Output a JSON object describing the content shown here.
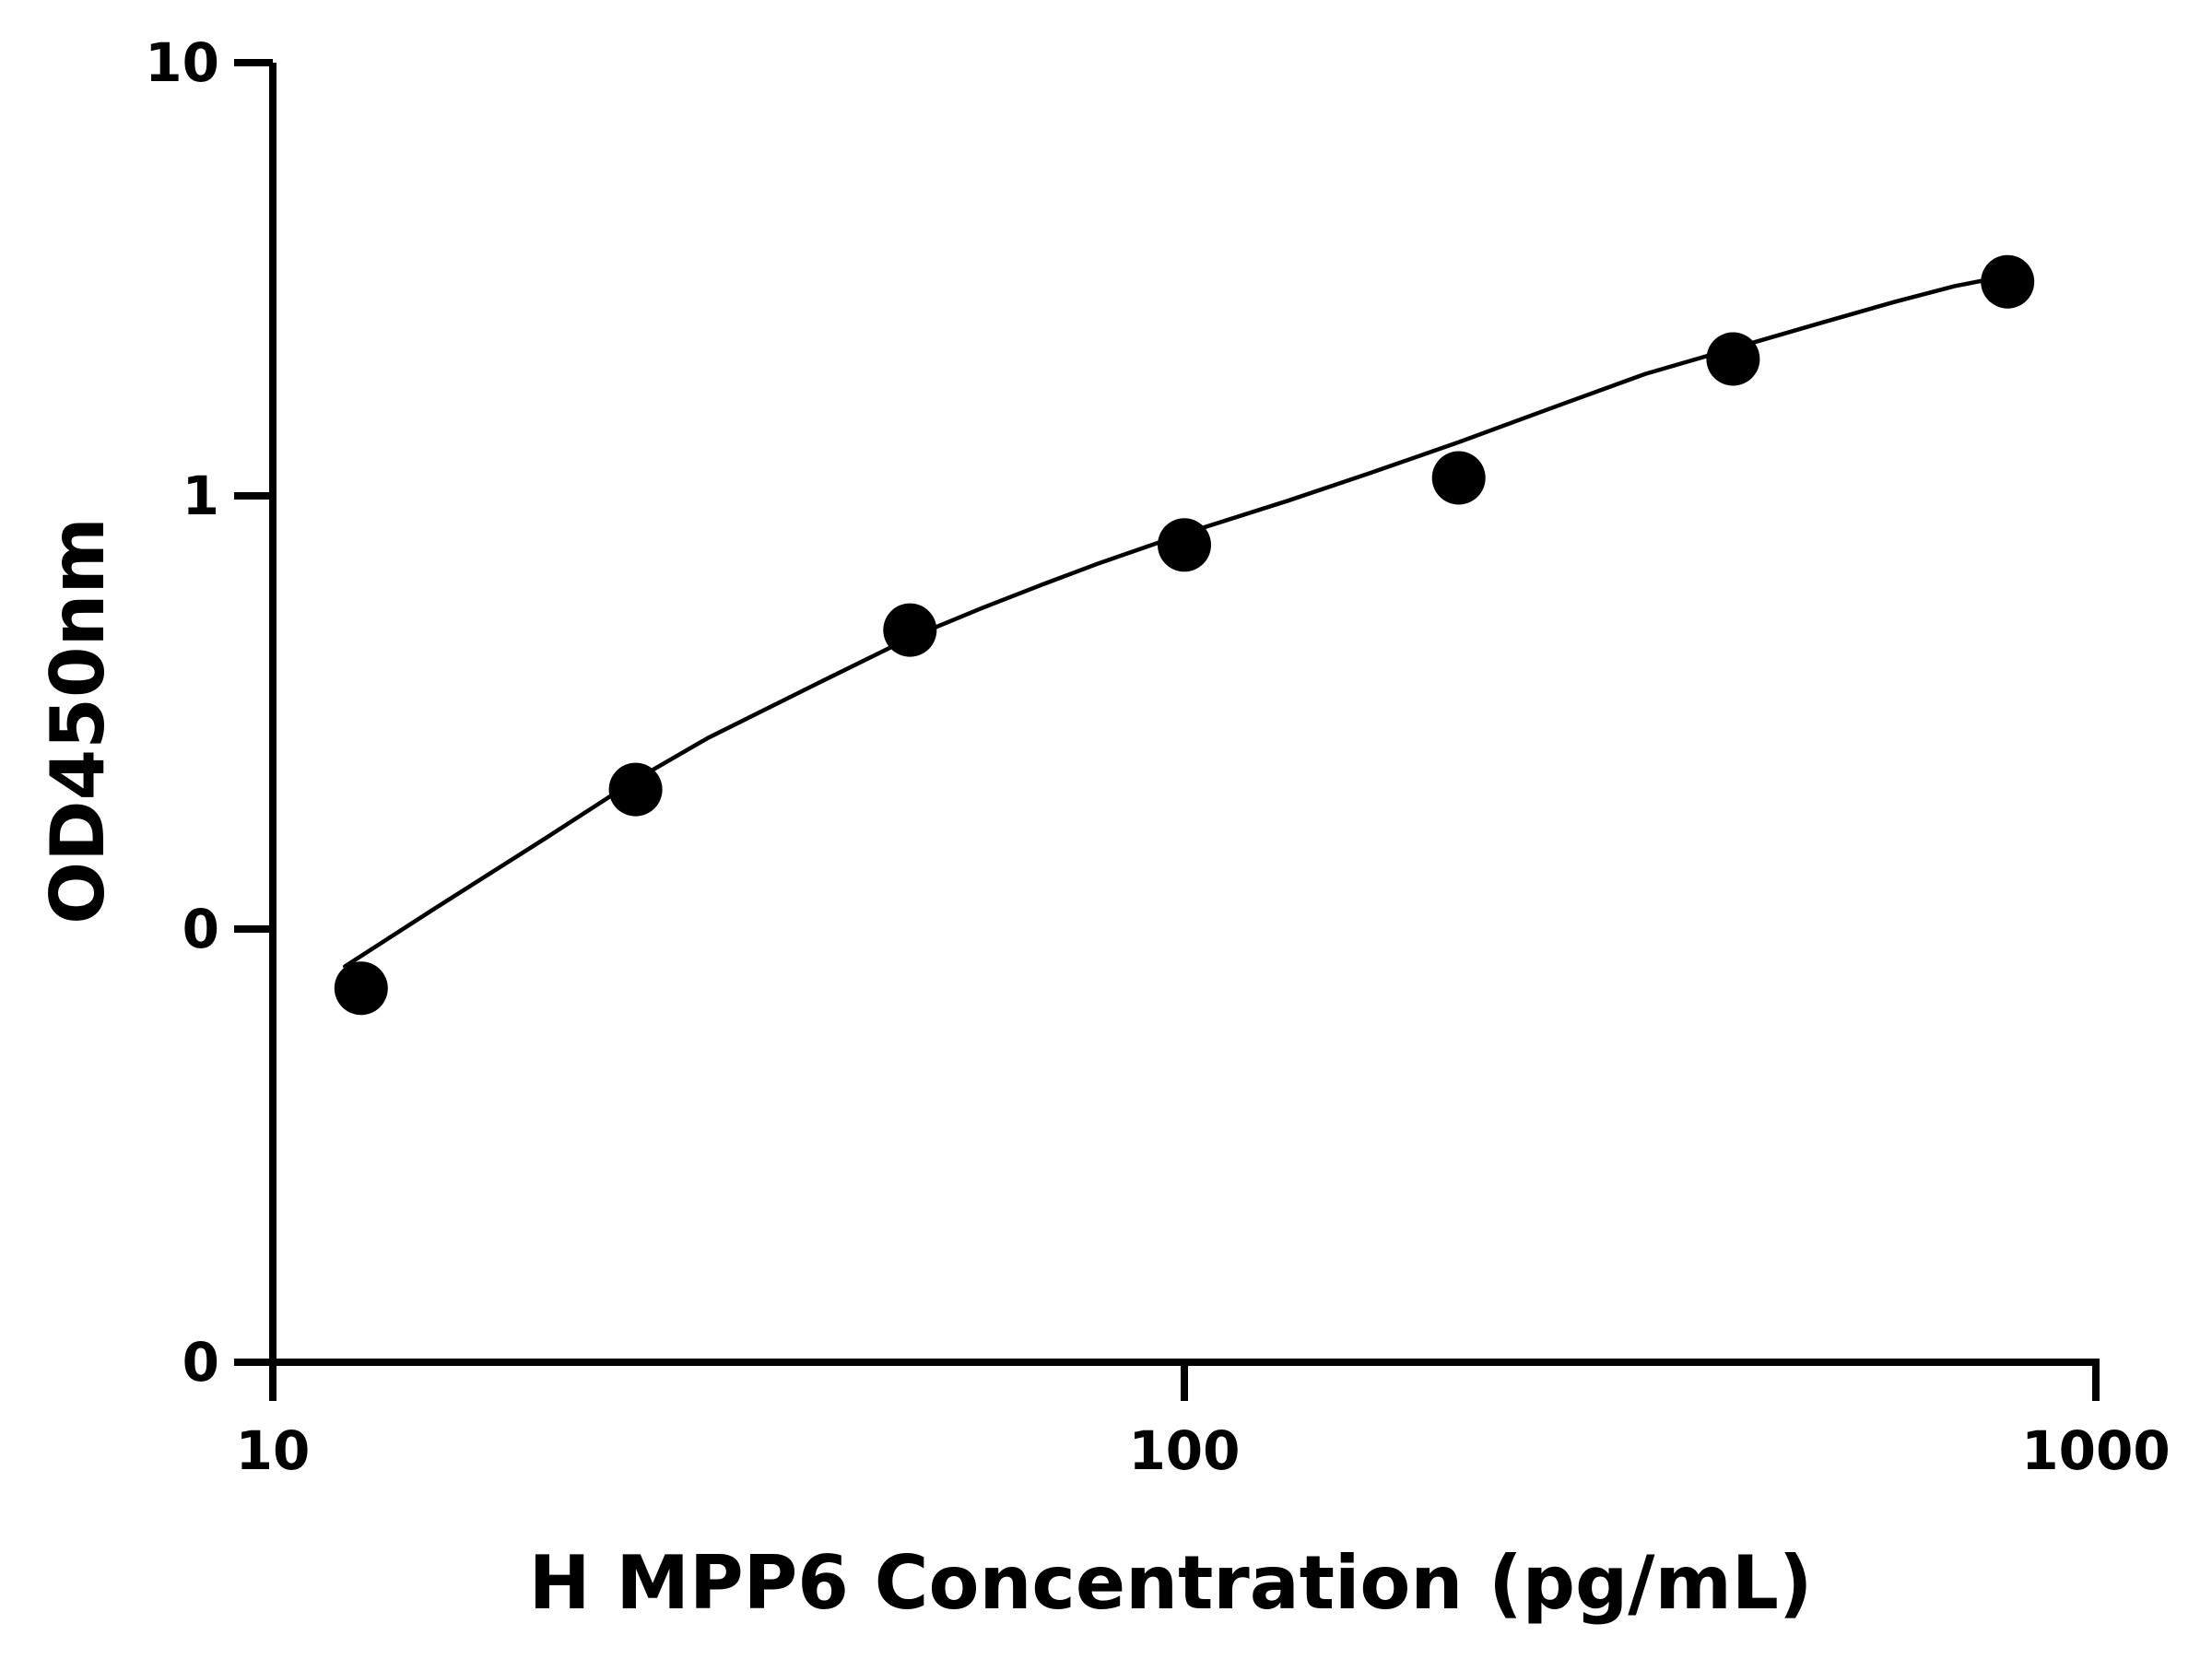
{
  "chart_data": {
    "type": "scatter",
    "title": "",
    "xlabel": "H MPP6 Concentration (pg/mL)",
    "ylabel": "OD450nm",
    "x_scale": "log",
    "y_scale": "log",
    "xlim": [
      10,
      1000
    ],
    "ylim": [
      0.01,
      10
    ],
    "x_ticks": [
      10,
      100,
      1000
    ],
    "x_tick_labels": [
      "10",
      "100",
      "1000"
    ],
    "y_ticks": [
      0.01,
      0.1,
      1,
      10
    ],
    "y_tick_labels": [
      "0",
      "0",
      "1",
      "10"
    ],
    "grid": false,
    "legend": "none",
    "series": [
      {
        "x": [
          12.5,
          25,
          50,
          100,
          200,
          400,
          800
        ],
        "y": [
          0.073,
          0.21,
          0.49,
          0.77,
          1.1,
          2.07,
          3.12
        ]
      }
    ],
    "fit_curve": {
      "x": [
        12.0,
        15,
        20,
        25,
        30,
        40,
        50,
        60,
        70,
        80,
        100,
        130,
        160,
        200,
        260,
        320,
        400,
        500,
        600,
        700,
        800
      ],
      "y": [
        0.082,
        0.111,
        0.163,
        0.221,
        0.276,
        0.373,
        0.47,
        0.551,
        0.625,
        0.695,
        0.818,
        0.975,
        1.13,
        1.33,
        1.63,
        1.91,
        2.19,
        2.51,
        2.8,
        3.05,
        3.22
      ]
    },
    "colors": {
      "marker": "#000000",
      "line": "#000000",
      "axis": "#000000"
    }
  }
}
